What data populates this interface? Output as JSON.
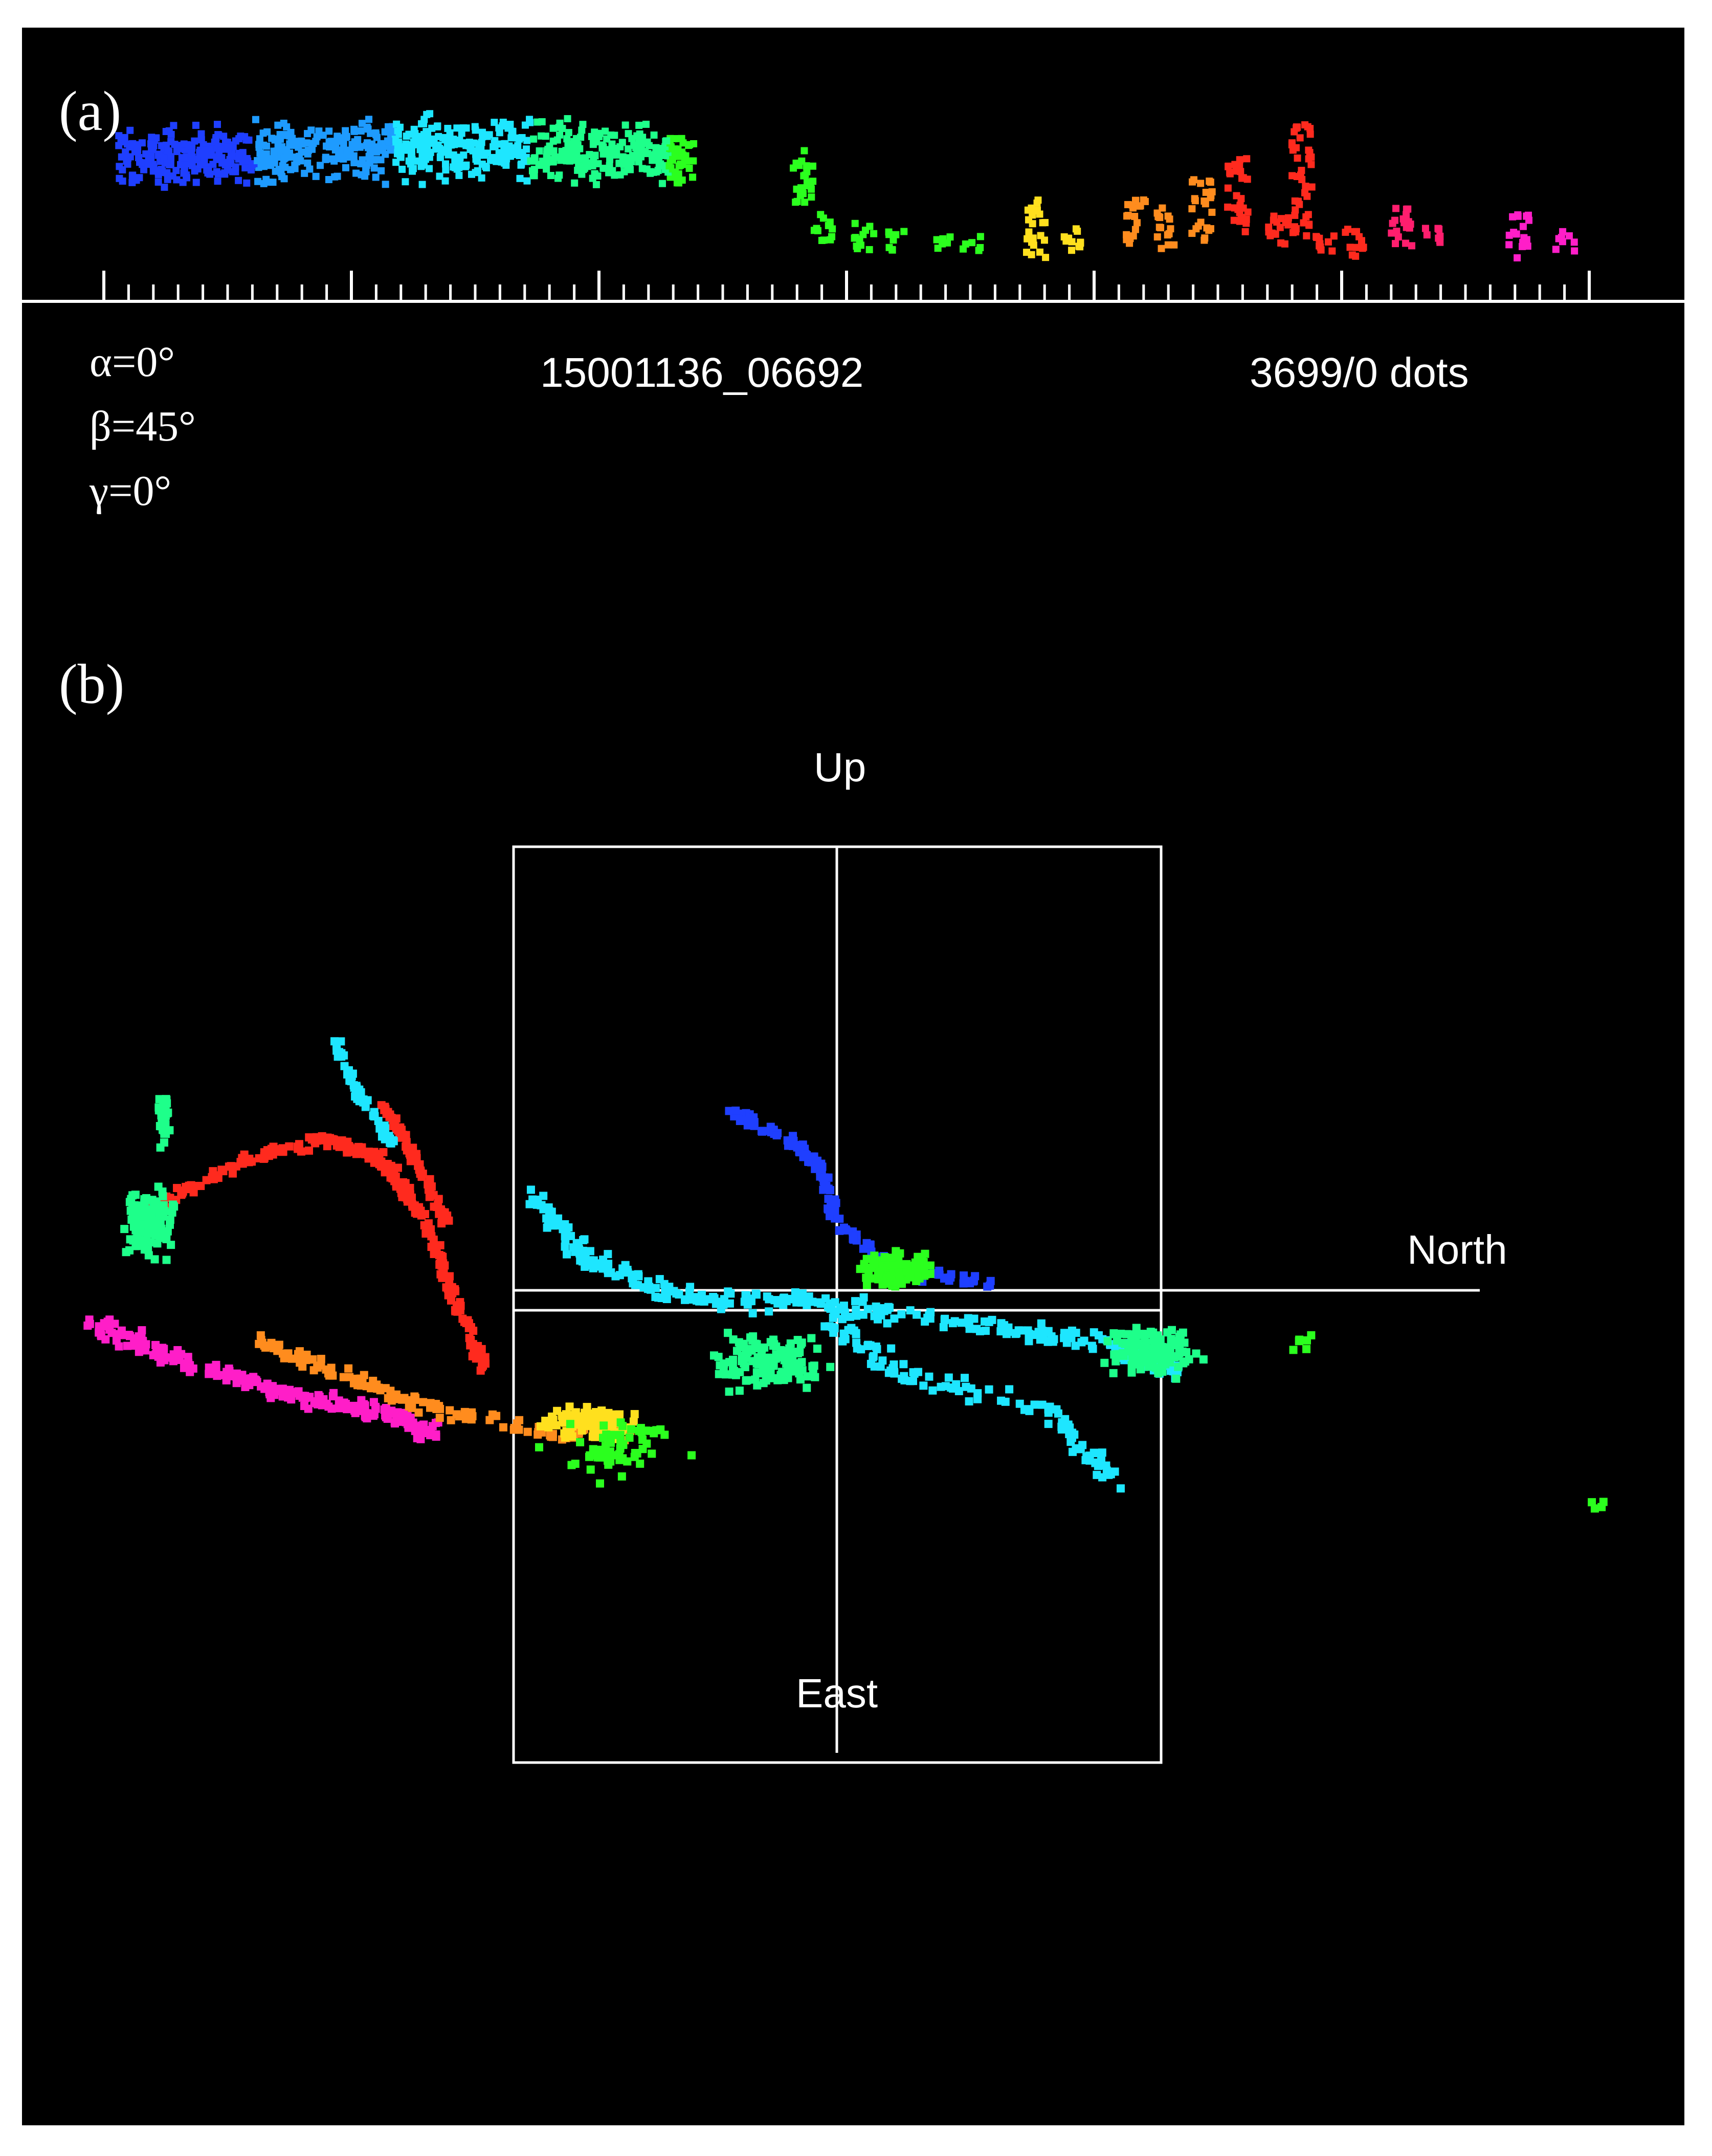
{
  "panel_a": {
    "label": "(a)",
    "angles": {
      "alpha": "α=0°",
      "beta": "β=45°",
      "gamma": "γ=0°"
    },
    "flash_id": "15001136_06692",
    "dot_count": "3699/0 dots",
    "major_ticks": 7,
    "minor_ticks_between_major": 9
  },
  "panel_b": {
    "label": "(b)",
    "axis_labels": {
      "up": "Up",
      "north": "North",
      "east": "East"
    }
  },
  "colors": {
    "background": "#000000",
    "foreground": "#ffffff",
    "time_scale": [
      "#1f3fff",
      "#1e9bff",
      "#1ee6ff",
      "#1eff8a",
      "#2bff1e",
      "#ffe01e",
      "#ff8c1e",
      "#ff2a1e",
      "#ff1e6e",
      "#ff1ec8"
    ]
  }
}
